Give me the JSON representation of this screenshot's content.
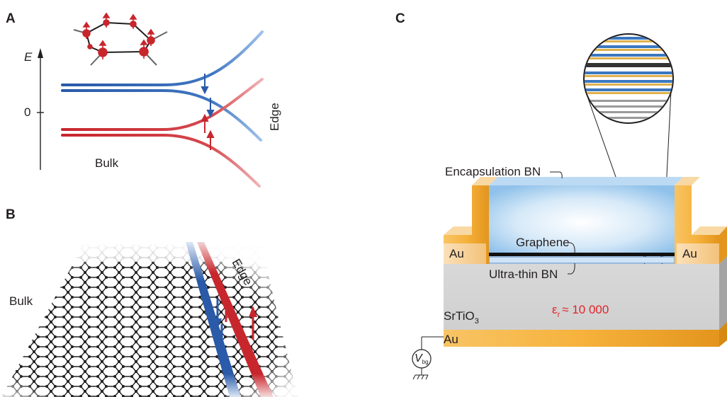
{
  "panels": {
    "a": {
      "letter": "A",
      "e_axis": "E",
      "zero_tick": "0",
      "bulk": "Bulk",
      "edge": "Edge"
    },
    "b": {
      "letter": "B",
      "bulk": "Bulk",
      "edge": "Edge"
    },
    "c": {
      "letter": "C",
      "encapsulation": "Encapsulation BN",
      "graphene": "Graphene",
      "ultrathin": "Ultra-thin BN",
      "au_left": "Au",
      "au_right": "Au",
      "au_bottom": "Au",
      "substrate": "SrTiO",
      "substrate_sub": "3",
      "epsilon": "ε",
      "epsilon_sub": "r",
      "epsilon_value": "≈ 10 000",
      "gate": "V",
      "gate_sub": "bg"
    }
  },
  "colors": {
    "blue": "#2a5aa8",
    "red": "#c8262d",
    "gold": "#f6b23c",
    "gold_dark": "#e08e12",
    "bn_blue": "#a9d0ef",
    "gray": "#d6d6d6",
    "gray_dark": "#a8a8a8"
  }
}
